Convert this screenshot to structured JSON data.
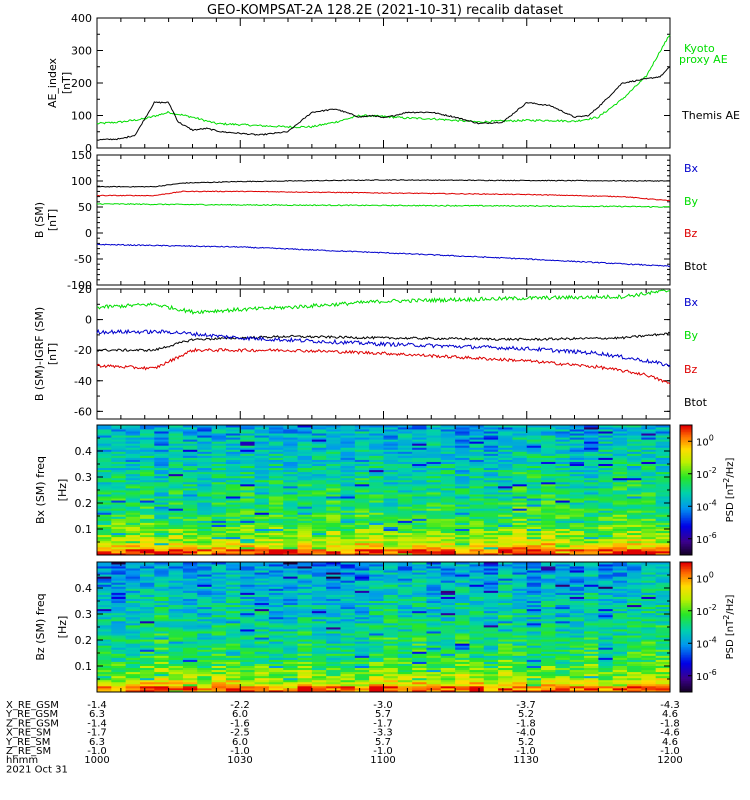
{
  "title": "GEO-KOMPSAT-2A 128.2E (2021-10-31) recalib dataset",
  "chart_data": [
    {
      "type": "line",
      "ylabel": "AE_index [nT]",
      "ylim": [
        0,
        400
      ],
      "yticks": [
        0,
        100,
        200,
        300,
        400
      ],
      "x_minutes_since_1000": true,
      "xlim": [
        0,
        120
      ],
      "series": [
        {
          "name": "Kyoto proxy AE",
          "color": "#00dd00",
          "x": [
            0,
            5,
            10,
            15,
            20,
            25,
            30,
            35,
            40,
            45,
            50,
            55,
            60,
            65,
            70,
            75,
            80,
            85,
            90,
            95,
            100,
            105,
            110,
            115,
            118,
            120
          ],
          "y": [
            75,
            80,
            90,
            110,
            95,
            75,
            72,
            68,
            65,
            65,
            80,
            100,
            97,
            92,
            90,
            85,
            80,
            83,
            85,
            85,
            82,
            95,
            150,
            220,
            300,
            350
          ]
        },
        {
          "name": "Themis AE",
          "color": "#000000",
          "x": [
            0,
            5,
            8,
            12,
            15,
            17,
            20,
            23,
            26,
            30,
            34,
            40,
            45,
            50,
            55,
            58,
            60,
            65,
            70,
            75,
            80,
            85,
            90,
            95,
            100,
            103,
            106,
            110,
            114,
            118,
            120
          ],
          "y": [
            25,
            28,
            40,
            140,
            140,
            80,
            55,
            60,
            50,
            45,
            40,
            50,
            110,
            120,
            95,
            100,
            92,
            110,
            110,
            95,
            75,
            80,
            140,
            130,
            95,
            100,
            140,
            200,
            210,
            220,
            250
          ]
        }
      ]
    },
    {
      "type": "line",
      "ylabel": "B (SM) [nT]",
      "ylim": [
        -100,
        150
      ],
      "yticks": [
        -100,
        -50,
        0,
        50,
        100,
        150
      ],
      "xlim": [
        0,
        120
      ],
      "series": [
        {
          "name": "Bx",
          "color": "#000000",
          "x": [
            0,
            12,
            18,
            30,
            60,
            90,
            120
          ],
          "y": [
            89,
            89,
            96,
            99,
            102,
            101,
            100
          ]
        },
        {
          "name": "By",
          "color": "#00dd00",
          "x": [
            0,
            30,
            60,
            90,
            110,
            120
          ],
          "y": [
            56,
            54,
            53,
            52,
            51,
            50
          ]
        },
        {
          "name": "Bz",
          "color": "#dd0000",
          "x": [
            0,
            12,
            18,
            30,
            60,
            90,
            110,
            120
          ],
          "y": [
            72,
            72,
            80,
            80,
            77,
            74,
            70,
            62
          ]
        },
        {
          "name": "Btot",
          "color": "#0000cc",
          "x": [
            0,
            30,
            60,
            90,
            120
          ],
          "y": [
            -22,
            -27,
            -38,
            -50,
            -64
          ]
        }
      ],
      "legend": [
        "Bx",
        "By",
        "Bz",
        "Btot"
      ]
    },
    {
      "type": "line",
      "ylabel": "B (SM)-IGRF (SM) [nT]",
      "ylim": [
        -65,
        20
      ],
      "yticks": [
        -60,
        -40,
        -20,
        0,
        20
      ],
      "xlim": [
        0,
        120
      ],
      "series": [
        {
          "name": "Bx",
          "color": "#00dd00",
          "x": [
            0,
            12,
            20,
            40,
            60,
            90,
            110,
            120
          ],
          "y": [
            8,
            10,
            5,
            8,
            12,
            14,
            15,
            19
          ]
        },
        {
          "name": "By",
          "color": "#000000",
          "x": [
            0,
            12,
            20,
            40,
            60,
            90,
            110,
            120
          ],
          "y": [
            -20,
            -20,
            -13,
            -11,
            -12,
            -13,
            -12,
            -9
          ]
        },
        {
          "name": "Bz",
          "color": "#0000cc",
          "x": [
            0,
            15,
            30,
            60,
            90,
            105,
            115,
            120
          ],
          "y": [
            -8,
            -8,
            -12,
            -16,
            -19,
            -22,
            -27,
            -30
          ]
        },
        {
          "name": "Btot",
          "color": "#dd0000",
          "x": [
            0,
            12,
            20,
            40,
            60,
            90,
            105,
            115,
            120
          ],
          "y": [
            -30,
            -32,
            -20,
            -20,
            -22,
            -27,
            -31,
            -36,
            -42
          ]
        }
      ],
      "legend": [
        "Bx",
        "By",
        "Bz",
        "Btot"
      ]
    },
    {
      "type": "heatmap",
      "ylabel": "Bx (SM) freq [Hz]",
      "ylim": [
        0,
        0.5
      ],
      "yticks": [
        0.1,
        0.2,
        0.3,
        0.4
      ],
      "colorbar_label": "PSD [nT^2/Hz]",
      "colorbar_ticks": [
        "10^0",
        "10^-2",
        "10^-4",
        "10^-6"
      ],
      "colorbar_tick_exponents": [
        0,
        -2,
        -4,
        -6
      ],
      "colorbar_range_exponent": [
        -7,
        1
      ]
    },
    {
      "type": "heatmap",
      "ylabel": "Bz (SM) freq [Hz]",
      "ylim": [
        0,
        0.5
      ],
      "yticks": [
        0.1,
        0.2,
        0.3,
        0.4
      ],
      "colorbar_label": "PSD [nT^2/Hz]",
      "colorbar_ticks": [
        "10^0",
        "10^-2",
        "10^-4",
        "10^-6"
      ],
      "colorbar_tick_exponents": [
        0,
        -2,
        -4,
        -6
      ],
      "colorbar_range_exponent": [
        -7,
        1
      ]
    }
  ],
  "legend_labels": {
    "kyoto": [
      "Kyoto",
      "proxy AE"
    ],
    "themis": "Themis AE",
    "b1": [
      "Bx",
      "By",
      "Bz",
      "Btot"
    ],
    "b2": [
      "Bx",
      "By",
      "Bz",
      "Btot"
    ]
  },
  "ephemeris": {
    "row_labels": [
      "X_RE_GSM",
      "Y_RE_GSM",
      "Z_RE_GSM",
      "X_RE_SM",
      "Y_RE_SM",
      "Z_RE_SM",
      "hhmm"
    ],
    "columns": [
      {
        "values": [
          "-1.4",
          "6.3",
          "-1.4",
          "-1.7",
          "6.3",
          "-1.0",
          "1000"
        ]
      },
      {
        "values": [
          "-2.2",
          "6.0",
          "-1.6",
          "-2.5",
          "6.0",
          "-1.0",
          "1030"
        ]
      },
      {
        "values": [
          "-3.0",
          "5.7",
          "-1.7",
          "-3.3",
          "5.7",
          "-1.0",
          "1100"
        ]
      },
      {
        "values": [
          "-3.7",
          "5.2",
          "-1.8",
          "-4.0",
          "5.2",
          "-1.0",
          "1130"
        ]
      },
      {
        "values": [
          "-4.3",
          "4.6",
          "-1.8",
          "-4.6",
          "4.6",
          "-1.0",
          "1200"
        ]
      }
    ],
    "date": "2021 Oct 31"
  },
  "colors": {
    "black": "#000000",
    "green": "#00dd00",
    "red": "#dd0000",
    "blue": "#0000cc"
  }
}
